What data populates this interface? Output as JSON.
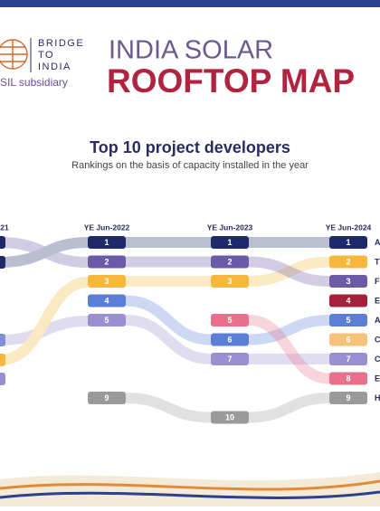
{
  "header": {
    "logo_lines": [
      "BRIDGE",
      "TO",
      "INDIA"
    ],
    "logo_subtitle": "SIL subsidiary",
    "title_line1": "INDIA SOLAR",
    "title_line2": "ROOFTOP MAP"
  },
  "chart": {
    "title": "Top 10 project developers",
    "subtitle": "Rankings on the basis of capacity installed in the year",
    "columns": [
      "21",
      "YE Jun-2022",
      "YE Jun-2023",
      "YE Jun-2024"
    ],
    "developers": [
      {
        "name": "A",
        "color": "#1f2a6b",
        "ranks": [
          null,
          1,
          1,
          1
        ]
      },
      {
        "name": "T",
        "color": "#f5b83d",
        "ranks": [
          null,
          3,
          3,
          2
        ]
      },
      {
        "name": "F",
        "color": "#6a5aa8",
        "ranks": [
          null,
          2,
          2,
          3
        ]
      },
      {
        "name": "E",
        "color": "#a3213a",
        "ranks": [
          null,
          null,
          null,
          4
        ]
      },
      {
        "name": "A",
        "color": "#5b7fd6",
        "ranks": [
          null,
          4,
          6,
          5
        ]
      },
      {
        "name": "C",
        "color": "#f6c27a",
        "ranks": [
          null,
          null,
          null,
          6
        ]
      },
      {
        "name": "C",
        "color": "#9a8fd0",
        "ranks": [
          null,
          5,
          7,
          7
        ]
      },
      {
        "name": "E",
        "color": "#e8708a",
        "ranks": [
          null,
          null,
          5,
          8
        ]
      },
      {
        "name": "H",
        "color": "#9a9a9a",
        "ranks": [
          null,
          9,
          10,
          9
        ]
      }
    ]
  }
}
